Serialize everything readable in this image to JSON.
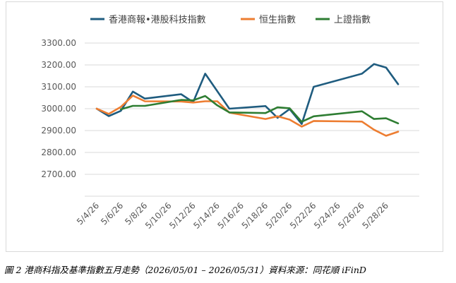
{
  "chart_data": {
    "type": "line",
    "title": "",
    "xlabel": "",
    "ylabel": "",
    "ylim": [
      2600,
      3300
    ],
    "y_ticks": [
      "2700.00",
      "2800.00",
      "2900.00",
      "3000.00",
      "3100.00",
      "3200.00",
      "3300.00"
    ],
    "x_ticks": [
      "5/4/26",
      "5/6/26",
      "5/8/26",
      "5/10/26",
      "5/12/26",
      "5/14/26",
      "5/16/26",
      "5/18/26",
      "5/20/26",
      "5/22/26",
      "5/24/26",
      "5/26/26",
      "5/28/26"
    ],
    "x_range": [
      "2026-05-04",
      "2026-05-29"
    ],
    "grid": true,
    "legend_position": "top",
    "series": [
      {
        "name": "香港商報•港股科技指數",
        "color": "#1f5c7f",
        "points": [
          [
            "2026-05-04",
            3000
          ],
          [
            "2026-05-05",
            2966
          ],
          [
            "2026-05-06",
            2990
          ],
          [
            "2026-05-07",
            3078
          ],
          [
            "2026-05-08",
            3046
          ],
          [
            "2026-05-11",
            3066
          ],
          [
            "2026-05-12",
            3030
          ],
          [
            "2026-05-13",
            3160
          ],
          [
            "2026-05-15",
            3000
          ],
          [
            "2026-05-18",
            3012
          ],
          [
            "2026-05-19",
            2958
          ],
          [
            "2026-05-20",
            2998
          ],
          [
            "2026-05-21",
            2930
          ],
          [
            "2026-05-22",
            3100
          ],
          [
            "2026-05-26",
            3160
          ],
          [
            "2026-05-27",
            3204
          ],
          [
            "2026-05-28",
            3188
          ],
          [
            "2026-05-29",
            3112
          ]
        ]
      },
      {
        "name": "恒生指數",
        "color": "#ed7d31",
        "points": [
          [
            "2026-05-04",
            3000
          ],
          [
            "2026-05-05",
            2976
          ],
          [
            "2026-05-06",
            3008
          ],
          [
            "2026-05-07",
            3060
          ],
          [
            "2026-05-08",
            3034
          ],
          [
            "2026-05-11",
            3033
          ],
          [
            "2026-05-12",
            3028
          ],
          [
            "2026-05-13",
            3034
          ],
          [
            "2026-05-14",
            3034
          ],
          [
            "2026-05-15",
            2982
          ],
          [
            "2026-05-18",
            2953
          ],
          [
            "2026-05-19",
            2965
          ],
          [
            "2026-05-20",
            2950
          ],
          [
            "2026-05-21",
            2918
          ],
          [
            "2026-05-22",
            2944
          ],
          [
            "2026-05-26",
            2941
          ],
          [
            "2026-05-27",
            2904
          ],
          [
            "2026-05-28",
            2876
          ],
          [
            "2026-05-29",
            2895
          ]
        ]
      },
      {
        "name": "上證指數",
        "color": "#2e7d32",
        "points": [
          [
            "2026-05-06",
            2997
          ],
          [
            "2026-05-07",
            3013
          ],
          [
            "2026-05-08",
            3013
          ],
          [
            "2026-05-11",
            3040
          ],
          [
            "2026-05-12",
            3038
          ],
          [
            "2026-05-13",
            3058
          ],
          [
            "2026-05-14",
            3015
          ],
          [
            "2026-05-15",
            2983
          ],
          [
            "2026-05-18",
            2980
          ],
          [
            "2026-05-19",
            3006
          ],
          [
            "2026-05-20",
            3002
          ],
          [
            "2026-05-21",
            2940
          ],
          [
            "2026-05-22",
            2965
          ],
          [
            "2026-05-26",
            2988
          ],
          [
            "2026-05-27",
            2953
          ],
          [
            "2026-05-28",
            2956
          ],
          [
            "2026-05-29",
            2933
          ]
        ]
      }
    ]
  },
  "caption": "圖 2 港商科指及基準指數五月走勢（2026/05/01 – 2026/05/31）資料來源：同花順 iFinD"
}
